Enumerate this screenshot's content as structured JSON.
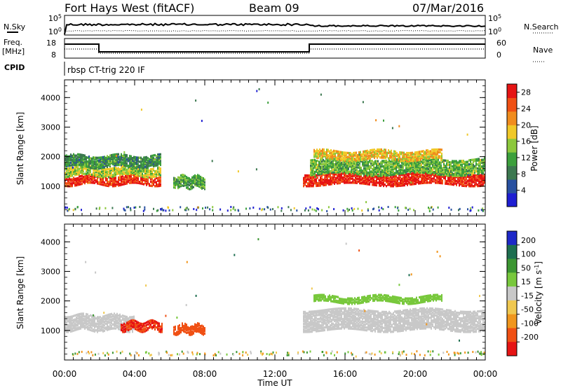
{
  "header": {
    "site": "Fort Hays West (fitACF)",
    "beam": "Beam 09",
    "date": "07/Mar/2016"
  },
  "top_panels": {
    "nsky_label": "N.Sky",
    "nsearch_label": "N.Search",
    "nsky_ticks": [
      "10^5",
      "10^0"
    ],
    "nsearch_ticks": [
      "10^5",
      "10^0"
    ],
    "freq_label_1": "Freq.",
    "freq_label_2": "[MHz]",
    "freq_ticks": [
      "18",
      "8"
    ],
    "nave_label": "Nave",
    "nave_ticks": [
      "60",
      "0"
    ],
    "cpid_label": "CPID",
    "cpid_text": "rbsp CT-trig 220 IF"
  },
  "chart_data": [
    {
      "type": "heatmap",
      "name": "power",
      "ylabel": "Slant Range [km]",
      "xlabel": "",
      "ylim": [
        0,
        4600
      ],
      "xlim": [
        0,
        24
      ],
      "y_ticks": [
        "1000",
        "2000",
        "3000",
        "4000"
      ],
      "x_ticks": [
        "00:00",
        "04:00",
        "08:00",
        "12:00",
        "16:00",
        "20:00",
        "00:00"
      ],
      "colorbar": {
        "label": "Power [dB]",
        "ticks": [
          "4",
          "8",
          "12",
          "16",
          "20",
          "24",
          "28"
        ],
        "range": [
          0,
          30
        ],
        "colors": [
          "#1e1ed2",
          "#2850a0",
          "#3c7850",
          "#3ca03c",
          "#8cc83c",
          "#f0c828",
          "#f08c1e",
          "#f05014",
          "#e61414"
        ]
      },
      "regions": [
        {
          "t": [
            0.0,
            5.5
          ],
          "center_km": 1250,
          "width_km": 300,
          "level": 27
        },
        {
          "t": [
            0.0,
            5.5
          ],
          "center_km": 1550,
          "width_km": 300,
          "level": 16
        },
        {
          "t": [
            0.0,
            5.5
          ],
          "center_km": 1900,
          "width_km": 400,
          "level": 10
        },
        {
          "t": [
            6.2,
            8.0
          ],
          "center_km": 1200,
          "width_km": 400,
          "level": 12
        },
        {
          "t": [
            13.6,
            24.0
          ],
          "center_km": 1300,
          "width_km": 400,
          "level": 28
        },
        {
          "t": [
            14.0,
            24.0
          ],
          "center_km": 1700,
          "width_km": 500,
          "level": 13
        },
        {
          "t": [
            14.2,
            21.5
          ],
          "center_km": 2100,
          "width_km": 300,
          "level": 19
        }
      ]
    },
    {
      "type": "heatmap",
      "name": "velocity",
      "ylabel": "Slant Range [km]",
      "xlabel": "Time UT",
      "ylim": [
        0,
        4600
      ],
      "xlim": [
        0,
        24
      ],
      "y_ticks": [
        "1000",
        "2000",
        "3000",
        "4000"
      ],
      "x_ticks": [
        "00:00",
        "04:00",
        "08:00",
        "12:00",
        "16:00",
        "20:00",
        "00:00"
      ],
      "colorbar": {
        "label": "Velocity [m s^-1]",
        "ticks": [
          "200",
          "100",
          "50",
          "15",
          "-15",
          "-50",
          "-100",
          "-200"
        ],
        "colors": [
          "#1e28c8",
          "#1e6e50",
          "#3c9632",
          "#78c83c",
          "#c8c8c8",
          "#f0c850",
          "#f0961e",
          "#f05014",
          "#e61414"
        ]
      },
      "regions": [
        {
          "t": [
            0.0,
            4.0
          ],
          "center_km": 1300,
          "width_km": 500,
          "level": -5
        },
        {
          "t": [
            3.2,
            5.6
          ],
          "center_km": 1200,
          "width_km": 300,
          "level": -200
        },
        {
          "t": [
            6.2,
            8.0
          ],
          "center_km": 1100,
          "width_km": 300,
          "level": -150
        },
        {
          "t": [
            13.6,
            24.0
          ],
          "center_km": 1400,
          "width_km": 700,
          "level": 0
        },
        {
          "t": [
            14.2,
            21.5
          ],
          "center_km": 2100,
          "width_km": 200,
          "level": 30
        }
      ]
    }
  ]
}
